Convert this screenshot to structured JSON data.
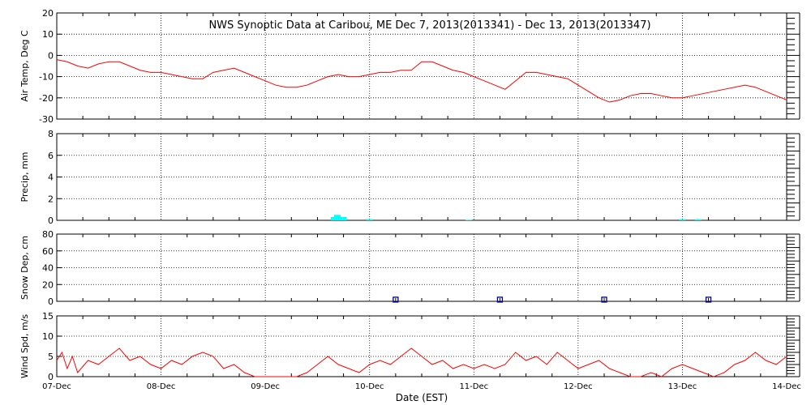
{
  "title": "NWS Synoptic Data at Caribou, ME   Dec  7, 2013(2013341) - Dec 13, 2013(2013347)",
  "xlabel": "Date (EST)",
  "x_ticks": [
    "07-Dec",
    "08-Dec",
    "09-Dec",
    "10-Dec",
    "11-Dec",
    "12-Dec",
    "13-Dec",
    "14-Dec"
  ],
  "colors": {
    "temp": "#ff0000",
    "precip": "#00ffff",
    "snow": "#00008b",
    "wind": "#ff0000",
    "grid": "#000000"
  },
  "chart_data": [
    {
      "type": "line",
      "ylabel": "Air Temp, Deg C",
      "ylim": [
        -30,
        20
      ],
      "yticks": [
        -30,
        -20,
        -10,
        0,
        10,
        20
      ],
      "x_unit": "days since 07-Dec 00:00",
      "series": [
        {
          "name": "Air Temp",
          "x": [
            0,
            0.1,
            0.2,
            0.3,
            0.4,
            0.5,
            0.6,
            0.7,
            0.8,
            0.9,
            1.0,
            1.1,
            1.2,
            1.3,
            1.4,
            1.5,
            1.6,
            1.7,
            1.8,
            1.9,
            2.0,
            2.1,
            2.2,
            2.3,
            2.4,
            2.5,
            2.6,
            2.7,
            2.8,
            2.9,
            3.0,
            3.1,
            3.2,
            3.3,
            3.4,
            3.5,
            3.6,
            3.7,
            3.8,
            3.9,
            4.0,
            4.1,
            4.2,
            4.3,
            4.4,
            4.5,
            4.6,
            4.7,
            4.8,
            4.9,
            5.0,
            5.1,
            5.2,
            5.3,
            5.4,
            5.5,
            5.6,
            5.7,
            5.8,
            5.9,
            6.0,
            6.1,
            6.2,
            6.3,
            6.4,
            6.5,
            6.6,
            6.7,
            6.8,
            6.9,
            7.0
          ],
          "values": [
            -2,
            -3,
            -5,
            -6,
            -4,
            -3,
            -3,
            -5,
            -7,
            -8,
            -8,
            -9,
            -10,
            -11,
            -11,
            -8,
            -7,
            -6,
            -8,
            -10,
            -12,
            -14,
            -15,
            -15,
            -14,
            -12,
            -10,
            -9,
            -10,
            -10,
            -9,
            -8,
            -8,
            -7,
            -7,
            -3,
            -3,
            -5,
            -7,
            -8,
            -10,
            -12,
            -14,
            -16,
            -12,
            -8,
            -8,
            -9,
            -10,
            -11,
            -14,
            -17,
            -20,
            -22,
            -21,
            -19,
            -18,
            -18,
            -19,
            -20,
            -20,
            -19,
            -18,
            -17,
            -16,
            -15,
            -14,
            -15,
            -17,
            -19,
            -21
          ]
        }
      ]
    },
    {
      "type": "bar",
      "ylabel": "Precip, mm",
      "ylim": [
        0,
        8
      ],
      "yticks": [
        0,
        2,
        4,
        6,
        8
      ],
      "x_unit": "days since 07-Dec 00:00",
      "series": [
        {
          "name": "Precip",
          "x": [
            2.66,
            2.69,
            2.72,
            2.75,
            3.0,
            3.95,
            6.0,
            6.15
          ],
          "values": [
            0.3,
            0.5,
            0.3,
            0.3,
            0.1,
            0.05,
            0.1,
            0.1
          ]
        }
      ]
    },
    {
      "type": "scatter",
      "ylabel": "Snow Dep, cm",
      "ylim": [
        0,
        80
      ],
      "yticks": [
        0,
        20,
        40,
        60,
        80
      ],
      "x_unit": "days since 07-Dec 00:00",
      "series": [
        {
          "name": "Snow Depth",
          "x": [
            3.25,
            4.25,
            5.25,
            6.25
          ],
          "values": [
            2,
            2,
            2,
            2
          ]
        }
      ]
    },
    {
      "type": "line",
      "ylabel": "Wind Spd, m/s",
      "ylim": [
        0,
        15
      ],
      "yticks": [
        0,
        5,
        10,
        15
      ],
      "x_unit": "days since 07-Dec 00:00",
      "series": [
        {
          "name": "Wind Speed",
          "x": [
            0,
            0.05,
            0.1,
            0.15,
            0.2,
            0.3,
            0.4,
            0.5,
            0.6,
            0.7,
            0.8,
            0.9,
            1.0,
            1.1,
            1.2,
            1.3,
            1.4,
            1.5,
            1.6,
            1.7,
            1.8,
            1.9,
            2.0,
            2.1,
            2.2,
            2.3,
            2.4,
            2.5,
            2.6,
            2.7,
            2.8,
            2.9,
            3.0,
            3.1,
            3.2,
            3.3,
            3.4,
            3.5,
            3.6,
            3.7,
            3.8,
            3.9,
            4.0,
            4.1,
            4.2,
            4.3,
            4.4,
            4.5,
            4.6,
            4.7,
            4.8,
            4.9,
            5.0,
            5.1,
            5.2,
            5.3,
            5.4,
            5.5,
            5.6,
            5.7,
            5.8,
            5.9,
            6.0,
            6.1,
            6.2,
            6.3,
            6.4,
            6.5,
            6.6,
            6.7,
            6.8,
            6.9,
            7.0
          ],
          "values": [
            4,
            6,
            2,
            5,
            1,
            4,
            3,
            5,
            7,
            4,
            5,
            3,
            2,
            4,
            3,
            5,
            6,
            5,
            2,
            3,
            1,
            0,
            0,
            0,
            0,
            0,
            1,
            3,
            5,
            3,
            2,
            1,
            3,
            4,
            3,
            5,
            7,
            5,
            3,
            4,
            2,
            3,
            2,
            3,
            2,
            3,
            6,
            4,
            5,
            3,
            6,
            4,
            2,
            3,
            4,
            2,
            1,
            0,
            0,
            1,
            0,
            2,
            3,
            2,
            1,
            0,
            1,
            3,
            4,
            6,
            4,
            3,
            5
          ]
        }
      ]
    }
  ]
}
